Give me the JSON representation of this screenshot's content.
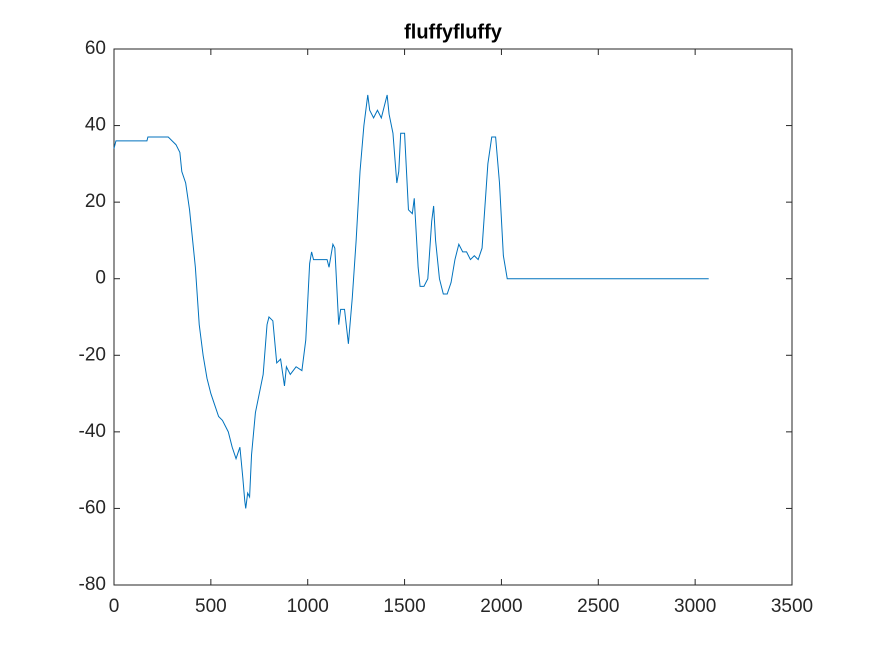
{
  "chart_data": {
    "type": "line",
    "title": "fluffyfluffy",
    "color": "#0072bd",
    "xlim": [
      0,
      3500
    ],
    "xticks": [
      0,
      500,
      1000,
      1500,
      2000,
      2500,
      3000,
      3500
    ],
    "ylim": [
      -80,
      60
    ],
    "yticks": [
      -80,
      -60,
      -40,
      -20,
      0,
      20,
      40,
      60
    ],
    "x": [
      0,
      10,
      170,
      175,
      280,
      300,
      320,
      340,
      350,
      370,
      390,
      410,
      420,
      440,
      460,
      480,
      500,
      520,
      540,
      560,
      590,
      610,
      630,
      650,
      665,
      675,
      680,
      690,
      700,
      710,
      730,
      750,
      770,
      790,
      800,
      820,
      840,
      860,
      880,
      890,
      910,
      940,
      970,
      990,
      1010,
      1020,
      1030,
      1070,
      1100,
      1110,
      1130,
      1140,
      1160,
      1170,
      1190,
      1210,
      1230,
      1250,
      1270,
      1290,
      1310,
      1320,
      1340,
      1360,
      1380,
      1400,
      1410,
      1420,
      1440,
      1460,
      1470,
      1480,
      1500,
      1520,
      1540,
      1550,
      1570,
      1580,
      1600,
      1620,
      1640,
      1650,
      1660,
      1680,
      1700,
      1720,
      1740,
      1760,
      1780,
      1800,
      1820,
      1840,
      1860,
      1880,
      1900,
      1930,
      1950,
      1970,
      1990,
      2010,
      2030,
      3070
    ],
    "values": [
      34,
      36,
      36,
      37,
      37,
      36,
      35,
      33,
      28,
      25,
      18,
      8,
      3,
      -12,
      -20,
      -26,
      -30,
      -33,
      -36,
      -37,
      -40,
      -44,
      -47,
      -44,
      -52,
      -58,
      -60,
      -56,
      -57,
      -46,
      -35,
      -30,
      -25,
      -12,
      -10,
      -11,
      -22,
      -21,
      -28,
      -23,
      -25,
      -23,
      -24,
      -16,
      4,
      7,
      5,
      5,
      5,
      3,
      9,
      8,
      -12,
      -8,
      -8,
      -17,
      -5,
      10,
      28,
      40,
      48,
      44,
      42,
      44,
      42,
      46,
      48,
      43,
      38,
      25,
      28,
      38,
      38,
      18,
      17,
      21,
      3,
      -2,
      -2,
      0,
      15,
      19,
      10,
      0,
      -4,
      -4,
      -1,
      5,
      9,
      7,
      7,
      5,
      6,
      5,
      8,
      30,
      37,
      37,
      25,
      6,
      0,
      0
    ]
  }
}
